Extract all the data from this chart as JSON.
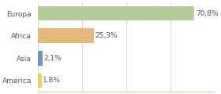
{
  "categories": [
    "Europa",
    "Africa",
    "Asia",
    "America"
  ],
  "values": [
    70.8,
    25.3,
    2.1,
    1.8
  ],
  "labels": [
    "70,8%",
    "25,3%",
    "2,1%",
    "1,8%"
  ],
  "bar_colors": [
    "#b5cc96",
    "#e8b87a",
    "#7090cc",
    "#e8d060"
  ],
  "background_color": "#ffffff",
  "grid_color": "#c8d8a8",
  "xlim": [
    0,
    80
  ],
  "label_fontsize": 6.5,
  "tick_fontsize": 6.5,
  "bar_height": 0.65
}
